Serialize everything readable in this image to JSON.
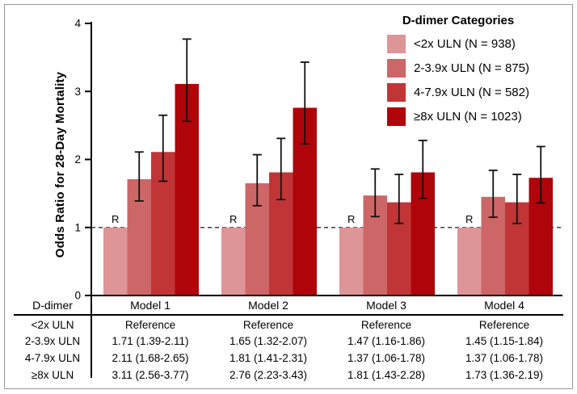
{
  "figure": {
    "background": "#ffffff",
    "border_color": "#999999"
  },
  "chart_data": {
    "type": "bar",
    "title": "",
    "ylabel": "Odds Ratio for 28-Day Mortality",
    "xlabel": "",
    "ylim": [
      0,
      4
    ],
    "yticks": [
      0,
      1,
      2,
      3,
      4
    ],
    "grid": false,
    "reference_line_y": 1,
    "reference_marker": "R",
    "categories": [
      "Model 1",
      "Model 2",
      "Model 3",
      "Model 4"
    ],
    "series": [
      {
        "name": "<2x ULN (N = 938)",
        "color": "#DE9598",
        "values": [
          1.0,
          1.0,
          1.0,
          1.0
        ],
        "ci": [
          null,
          null,
          null,
          null
        ]
      },
      {
        "name": "2-3.9x ULN (N = 875)",
        "color": "#CD6667",
        "values": [
          1.71,
          1.65,
          1.47,
          1.45
        ],
        "ci": [
          [
            1.39,
            2.11
          ],
          [
            1.32,
            2.07
          ],
          [
            1.16,
            1.86
          ],
          [
            1.15,
            1.84
          ]
        ]
      },
      {
        "name": "4-7.9x ULN (N = 582)",
        "color": "#C13536",
        "values": [
          2.11,
          1.81,
          1.37,
          1.37
        ],
        "ci": [
          [
            1.68,
            2.65
          ],
          [
            1.41,
            2.31
          ],
          [
            1.06,
            1.78
          ],
          [
            1.06,
            1.78
          ]
        ]
      },
      {
        "name": "≥8x ULN (N = 1023)",
        "color": "#AF0409",
        "values": [
          3.11,
          2.76,
          1.81,
          1.73
        ],
        "ci": [
          [
            2.56,
            3.77
          ],
          [
            2.23,
            3.43
          ],
          [
            1.43,
            2.28
          ],
          [
            1.36,
            2.19
          ]
        ]
      }
    ],
    "legend": {
      "title": "D-dimer Categories",
      "position": "top-right"
    }
  },
  "table": {
    "header": [
      "D-dimer",
      "Model 1",
      "Model 2",
      "Model 3",
      "Model 4"
    ],
    "rows": [
      {
        "label": "<2x ULN",
        "cells": [
          "Reference",
          "Reference",
          "Reference",
          "Reference"
        ]
      },
      {
        "label": "2-3.9x ULN",
        "cells": [
          "1.71 (1.39-2.11)",
          "1.65 (1.32-2.07)",
          "1.47 (1.16-1.86)",
          "1.45 (1.15-1.84)"
        ]
      },
      {
        "label": "4-7.9x ULN",
        "cells": [
          "2.11 (1.68-2.65)",
          "1.81 (1.41-2.31)",
          "1.37 (1.06-1.78)",
          "1.37 (1.06-1.78)"
        ]
      },
      {
        "label": "≥8x ULN",
        "cells": [
          "3.11 (2.56-3.77)",
          "2.76 (2.23-3.43)",
          "1.81 (1.43-2.28)",
          "1.73 (1.36-2.19)"
        ]
      }
    ]
  }
}
